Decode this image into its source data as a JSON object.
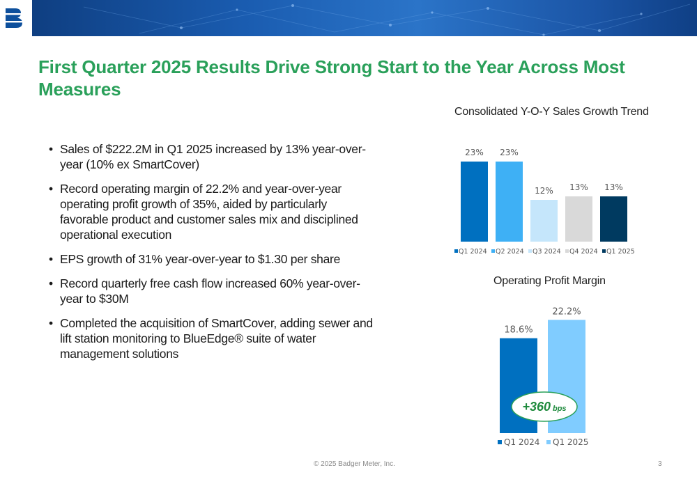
{
  "header": {
    "logo_icon": "badger-meter-logo-icon",
    "colors": {
      "banner_start": "#0d3a7a",
      "banner_end": "#2b74c8"
    }
  },
  "title": "First Quarter 2025 Results Drive Strong Start to the Year Across Most Measures",
  "bullets": [
    "Sales of $222.2M in Q1 2025 increased by 13% year-over-year (10% ex SmartCover)",
    "Record operating margin of 22.2% and year-over-year operating profit growth of 35%, aided by particularly favorable product and customer sales mix and disciplined operational execution",
    "EPS growth of 31% year-over-year to $1.30 per share",
    "Record quarterly free cash flow increased 60% year-over-year to $30M",
    "Completed the acquisition of SmartCover, adding sewer and lift station monitoring to BlueEdge® suite of water management solutions"
  ],
  "bullet_char": "•",
  "chart_data": [
    {
      "type": "bar",
      "title": "Consolidated Y-O-Y Sales Growth Trend",
      "categories": [
        "Q1 2024",
        "Q2 2024",
        "Q3 2024",
        "Q4 2024",
        "Q1 2025"
      ],
      "values": [
        23,
        23,
        12,
        13,
        13
      ],
      "labels": [
        "23%",
        "23%",
        "12%",
        "13%",
        "13%"
      ],
      "colors": [
        "#0070c0",
        "#3eb0f5",
        "#c5e6fb",
        "#d9d9d9",
        "#003a60"
      ],
      "legend": "bottom",
      "ylim": [
        0,
        25
      ],
      "grid": false
    },
    {
      "type": "bar",
      "title": "Operating Profit Margin",
      "categories": [
        "Q1 2024",
        "Q1 2025"
      ],
      "values": [
        18.6,
        22.2
      ],
      "labels": [
        "18.6%",
        "22.2%"
      ],
      "colors": [
        "#0070c0",
        "#80ccff"
      ],
      "legend": "bottom",
      "ylim": [
        0,
        23.2
      ],
      "grid": false,
      "annotation": {
        "value": "+360",
        "unit": "bps",
        "color": "#1e8a3c"
      }
    }
  ],
  "footer": {
    "copyright": "© 2025 Badger Meter, Inc.",
    "page_number": "3"
  }
}
